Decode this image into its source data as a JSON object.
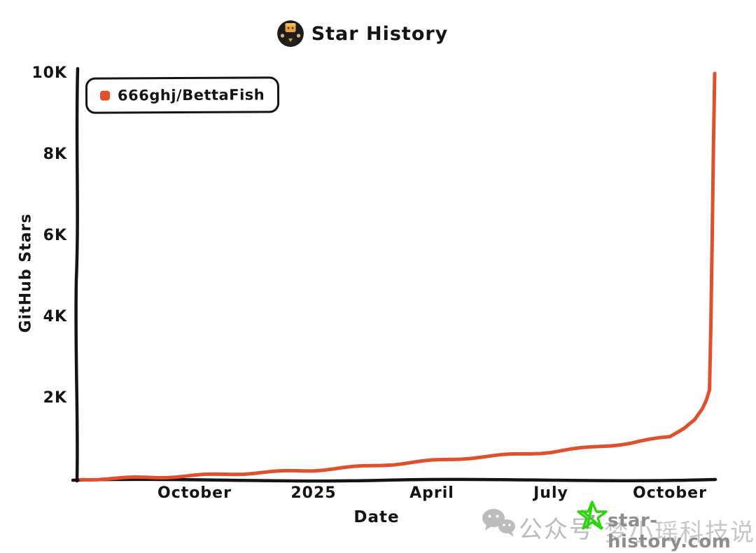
{
  "header": {
    "title": "Star History"
  },
  "chart_data": {
    "type": "line",
    "title": "Star History",
    "xlabel": "Date",
    "ylabel": "GitHub Stars",
    "ylim": [
      0,
      10000
    ],
    "x_range": [
      "2024-07",
      "2025-11"
    ],
    "grid": false,
    "legend_position": "top-left",
    "line_color": "#e0502b",
    "axis_color": "#141414",
    "yticks": [
      {
        "label": "10K",
        "value": 10000
      },
      {
        "label": "8K",
        "value": 8000
      },
      {
        "label": "6K",
        "value": 6000
      },
      {
        "label": "4K",
        "value": 4000
      },
      {
        "label": "2K",
        "value": 2000
      }
    ],
    "xticks": [
      {
        "label": "October",
        "date": "2024-10-01"
      },
      {
        "label": "2025",
        "date": "2025-01-01"
      },
      {
        "label": "April",
        "date": "2025-04-01"
      },
      {
        "label": "July",
        "date": "2025-07-01"
      },
      {
        "label": "October",
        "date": "2025-10-01"
      }
    ],
    "series": [
      {
        "name": "666ghj/BettaFish",
        "color": "#e0502b",
        "points": [
          [
            "2024-07-05",
            5
          ],
          [
            "2024-08-01",
            25
          ],
          [
            "2024-09-01",
            55
          ],
          [
            "2024-10-01",
            95
          ],
          [
            "2024-11-01",
            140
          ],
          [
            "2024-12-01",
            185
          ],
          [
            "2025-01-01",
            230
          ],
          [
            "2025-02-01",
            300
          ],
          [
            "2025-03-01",
            380
          ],
          [
            "2025-04-01",
            460
          ],
          [
            "2025-05-01",
            540
          ],
          [
            "2025-06-01",
            610
          ],
          [
            "2025-07-01",
            680
          ],
          [
            "2025-08-01",
            790
          ],
          [
            "2025-09-01",
            900
          ],
          [
            "2025-10-01",
            1050
          ],
          [
            "2025-10-12",
            1280
          ],
          [
            "2025-10-20",
            1500
          ],
          [
            "2025-10-26",
            1750
          ],
          [
            "2025-10-29",
            1950
          ],
          [
            "2025-11-01",
            2200
          ],
          [
            "2025-11-02",
            3800
          ],
          [
            "2025-11-03",
            5800
          ],
          [
            "2025-11-04",
            8200
          ],
          [
            "2025-11-05",
            10000
          ]
        ]
      }
    ]
  },
  "watermark": {
    "wechat_label": "公众号",
    "account": "梦小瑶科技说",
    "site": "star-history.com",
    "star_color": "#2bd40f",
    "gray": "#bcbcbc"
  }
}
